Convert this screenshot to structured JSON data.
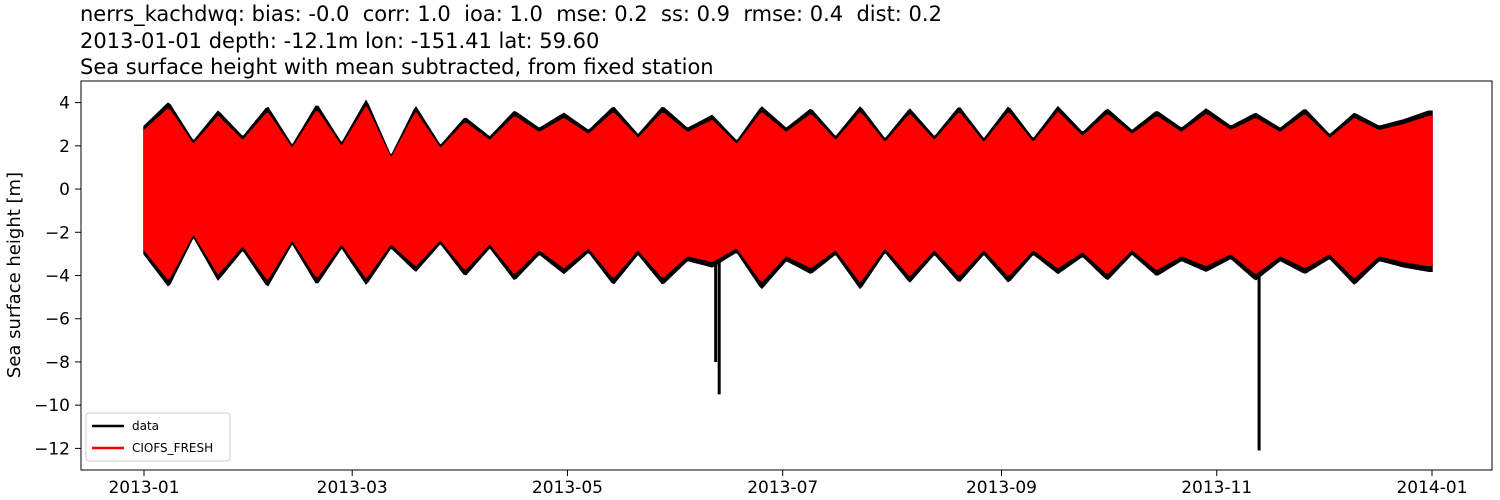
{
  "chart_data": {
    "type": "line",
    "title_lines": [
      "nerrs_kachdwq: bias: -0.0  corr: 1.0  ioa: 1.0  mse: 0.2  ss: 0.9  rmse: 0.4  dist: 0.2",
      "2013-01-01 depth: -12.1m lon: -151.41 lat: 59.60",
      "Sea surface height with mean subtracted, from fixed station"
    ],
    "xlabel": "",
    "ylabel": "Sea surface height [m]",
    "x_range": [
      "2013-01-01",
      "2014-01-01"
    ],
    "ylim": [
      -13,
      5
    ],
    "x_ticks": [
      "2013-01",
      "2013-03",
      "2013-05",
      "2013-07",
      "2013-09",
      "2013-11",
      "2014-01"
    ],
    "y_ticks": [
      4,
      2,
      0,
      -2,
      -4,
      -6,
      -8,
      -10,
      -12
    ],
    "y_tick_labels": [
      "4",
      "2",
      "0",
      "−2",
      "−4",
      "−6",
      "−8",
      "−10",
      "−12"
    ],
    "grid": false,
    "legend_position": "lower-left",
    "tidal_envelope": {
      "dates": [
        "2013-01-01",
        "2013-01-08",
        "2013-01-15",
        "2013-01-22",
        "2013-01-29",
        "2013-02-05",
        "2013-02-12",
        "2013-02-19",
        "2013-02-26",
        "2013-03-05",
        "2013-03-12",
        "2013-03-19",
        "2013-03-26",
        "2013-04-02",
        "2013-04-09",
        "2013-04-16",
        "2013-04-23",
        "2013-04-30",
        "2013-05-07",
        "2013-05-14",
        "2013-05-21",
        "2013-05-28",
        "2013-06-04",
        "2013-06-11",
        "2013-06-18",
        "2013-06-25",
        "2013-07-02",
        "2013-07-09",
        "2013-07-16",
        "2013-07-23",
        "2013-07-30",
        "2013-08-06",
        "2013-08-13",
        "2013-08-20",
        "2013-08-27",
        "2013-09-03",
        "2013-09-10",
        "2013-09-17",
        "2013-09-24",
        "2013-10-01",
        "2013-10-08",
        "2013-10-15",
        "2013-10-22",
        "2013-10-29",
        "2013-11-05",
        "2013-11-12",
        "2013-11-19",
        "2013-11-26",
        "2013-12-03",
        "2013-12-10",
        "2013-12-17",
        "2013-12-24",
        "2013-12-31"
      ],
      "high": [
        2.9,
        4.0,
        2.2,
        3.6,
        2.4,
        3.8,
        2.0,
        3.9,
        2.1,
        4.1,
        1.5,
        3.8,
        2.0,
        3.3,
        2.4,
        3.6,
        2.8,
        3.5,
        2.7,
        3.8,
        2.5,
        3.8,
        2.8,
        3.4,
        2.2,
        3.8,
        2.8,
        3.7,
        2.4,
        3.8,
        2.3,
        3.7,
        2.4,
        3.8,
        2.3,
        3.8,
        2.3,
        3.8,
        2.6,
        3.7,
        2.7,
        3.6,
        2.8,
        3.7,
        2.9,
        3.5,
        2.8,
        3.7,
        2.5,
        3.5,
        2.9,
        3.2,
        3.6
      ],
      "low": [
        -3.0,
        -4.5,
        -2.2,
        -4.2,
        -2.8,
        -4.5,
        -2.5,
        -4.4,
        -2.7,
        -4.4,
        -2.7,
        -3.8,
        -2.5,
        -4.0,
        -2.7,
        -4.2,
        -3.0,
        -3.9,
        -2.9,
        -4.4,
        -3.0,
        -4.4,
        -3.3,
        -3.6,
        -2.9,
        -4.6,
        -3.3,
        -3.9,
        -3.0,
        -4.6,
        -2.9,
        -4.3,
        -3.0,
        -4.3,
        -3.0,
        -4.3,
        -3.0,
        -3.9,
        -3.1,
        -4.2,
        -3.0,
        -4.0,
        -3.3,
        -3.8,
        -3.2,
        -4.2,
        -3.3,
        -3.9,
        -3.2,
        -4.4,
        -3.3,
        -3.6,
        -3.8
      ]
    },
    "series": [
      {
        "name": "data",
        "color": "#000000",
        "spikes": [
          {
            "date": "2013-06-12",
            "min": -8.0
          },
          {
            "date": "2013-06-13",
            "min": -9.5
          },
          {
            "date": "2013-11-13",
            "min": -12.1
          }
        ]
      },
      {
        "name": "CIOFS_FRESH",
        "color": "#ff0000",
        "spikes": []
      }
    ]
  }
}
